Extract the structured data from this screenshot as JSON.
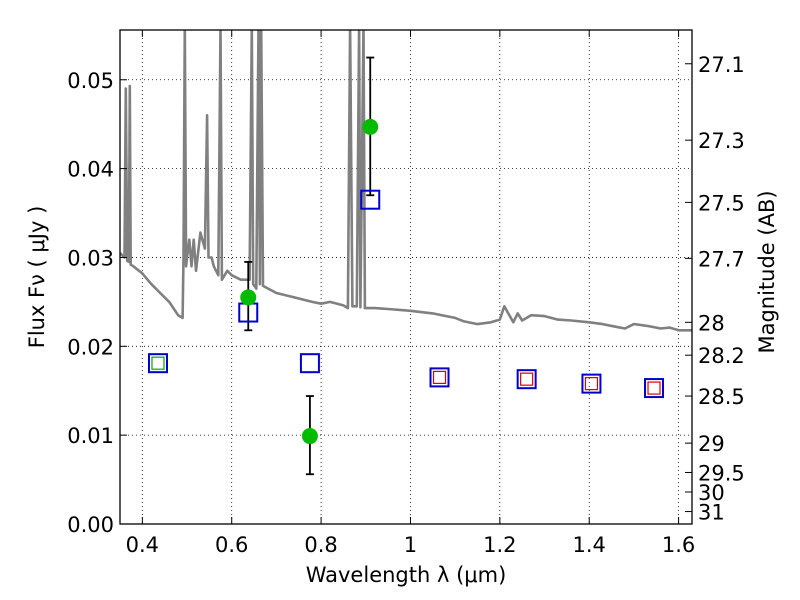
{
  "chart_data": {
    "type": "scatter",
    "xlabel": "Wavelength  λ (μm)",
    "ylabel": "Flux  Fν  ( μJy )",
    "y2label": "Magnitude (AB)",
    "xlim": [
      0.35,
      1.63
    ],
    "ylim": [
      0.0,
      0.0556
    ],
    "grid": true,
    "x_ticks": [
      0.4,
      0.6,
      0.8,
      1.0,
      1.2,
      1.4,
      1.6
    ],
    "x_tick_labels": [
      "0.4",
      "0.6",
      "0.8",
      "1",
      "1.2",
      "1.4",
      "1.6"
    ],
    "y_ticks": [
      0.0,
      0.01,
      0.02,
      0.03,
      0.04,
      0.05
    ],
    "y_tick_labels": [
      "0.00",
      "0.01",
      "0.02",
      "0.03",
      "0.04",
      "0.05"
    ],
    "mag_ticks": [
      {
        "label": "27.1",
        "flux": 0.0518
      },
      {
        "label": "27.3",
        "flux": 0.0432
      },
      {
        "label": "27.5",
        "flux": 0.0362
      },
      {
        "label": "27.7",
        "flux": 0.0299
      },
      {
        "label": "28",
        "flux": 0.0227
      },
      {
        "label": "28.2",
        "flux": 0.019
      },
      {
        "label": "28.5",
        "flux": 0.0144
      },
      {
        "label": "29",
        "flux": 0.0091
      },
      {
        "label": "29.5",
        "flux": 0.0058
      },
      {
        "label": "30",
        "flux": 0.0036
      },
      {
        "label": "31",
        "flux": 0.0014
      }
    ],
    "series": [
      {
        "kind": "sed_model",
        "color": "#808080",
        "points": [
          [
            0.35,
            0.0305
          ],
          [
            0.36,
            0.03
          ],
          [
            0.363,
            0.049
          ],
          [
            0.366,
            0.0296
          ],
          [
            0.37,
            0.0295
          ],
          [
            0.372,
            0.0493
          ],
          [
            0.374,
            0.0292
          ],
          [
            0.38,
            0.029
          ],
          [
            0.4,
            0.0282
          ],
          [
            0.42,
            0.027
          ],
          [
            0.44,
            0.026
          ],
          [
            0.46,
            0.025
          ],
          [
            0.48,
            0.0235
          ],
          [
            0.49,
            0.0232
          ],
          [
            0.492,
            0.03
          ],
          [
            0.495,
            0.056
          ],
          [
            0.498,
            0.029
          ],
          [
            0.5,
            0.03
          ],
          [
            0.505,
            0.032
          ],
          [
            0.51,
            0.029
          ],
          [
            0.515,
            0.032
          ],
          [
            0.52,
            0.0285
          ],
          [
            0.53,
            0.0328
          ],
          [
            0.54,
            0.031
          ],
          [
            0.545,
            0.046
          ],
          [
            0.548,
            0.03
          ],
          [
            0.555,
            0.03
          ],
          [
            0.56,
            0.029
          ],
          [
            0.57,
            0.028
          ],
          [
            0.575,
            0.056
          ],
          [
            0.578,
            0.0275
          ],
          [
            0.59,
            0.0285
          ],
          [
            0.6,
            0.028
          ],
          [
            0.62,
            0.0275
          ],
          [
            0.64,
            0.0275
          ],
          [
            0.645,
            0.056
          ],
          [
            0.648,
            0.027
          ],
          [
            0.655,
            0.0265
          ],
          [
            0.66,
            0.056
          ],
          [
            0.663,
            0.027
          ],
          [
            0.666,
            0.056
          ],
          [
            0.67,
            0.0268
          ],
          [
            0.7,
            0.026
          ],
          [
            0.74,
            0.0255
          ],
          [
            0.78,
            0.025
          ],
          [
            0.8,
            0.0248
          ],
          [
            0.82,
            0.025
          ],
          [
            0.85,
            0.0246
          ],
          [
            0.86,
            0.0243
          ],
          [
            0.865,
            0.056
          ],
          [
            0.87,
            0.0245
          ],
          [
            0.88,
            0.0245
          ],
          [
            0.885,
            0.056
          ],
          [
            0.888,
            0.0244
          ],
          [
            0.895,
            0.056
          ],
          [
            0.898,
            0.0243
          ],
          [
            0.92,
            0.0243
          ],
          [
            0.95,
            0.0242
          ],
          [
            1.0,
            0.024
          ],
          [
            1.05,
            0.0237
          ],
          [
            1.08,
            0.0234
          ],
          [
            1.1,
            0.0232
          ],
          [
            1.12,
            0.0228
          ],
          [
            1.15,
            0.0225
          ],
          [
            1.18,
            0.0227
          ],
          [
            1.2,
            0.023
          ],
          [
            1.21,
            0.0245
          ],
          [
            1.22,
            0.0236
          ],
          [
            1.23,
            0.0227
          ],
          [
            1.24,
            0.0237
          ],
          [
            1.25,
            0.0229
          ],
          [
            1.27,
            0.0235
          ],
          [
            1.3,
            0.0234
          ],
          [
            1.33,
            0.023
          ],
          [
            1.36,
            0.0229
          ],
          [
            1.4,
            0.0227
          ],
          [
            1.43,
            0.0225
          ],
          [
            1.46,
            0.0222
          ],
          [
            1.48,
            0.022
          ],
          [
            1.5,
            0.0225
          ],
          [
            1.53,
            0.0223
          ],
          [
            1.56,
            0.022
          ],
          [
            1.58,
            0.0221
          ],
          [
            1.6,
            0.0218
          ],
          [
            1.63,
            0.0218
          ]
        ]
      },
      {
        "kind": "observed",
        "color": "#00bb00",
        "points": [
          {
            "x": 0.637,
            "y": 0.0255,
            "yerr_low": 0.0037,
            "yerr_high": 0.004
          },
          {
            "x": 0.775,
            "y": 0.0099,
            "yerr_low": 0.0043,
            "yerr_high": 0.0045
          },
          {
            "x": 0.91,
            "y": 0.0447,
            "yerr_low": 0.0077,
            "yerr_high": 0.0078
          }
        ]
      },
      {
        "kind": "model_synthetic",
        "color": "#0000cc",
        "points": [
          {
            "x": 0.435,
            "y": 0.0181,
            "inner_color": "#00aa00"
          },
          {
            "x": 0.637,
            "y": 0.0238,
            "inner_color": ""
          },
          {
            "x": 0.775,
            "y": 0.0181,
            "inner_color": ""
          },
          {
            "x": 0.91,
            "y": 0.0365,
            "inner_color": ""
          },
          {
            "x": 1.065,
            "y": 0.0165,
            "inner_color": "#dd0000"
          },
          {
            "x": 1.26,
            "y": 0.0163,
            "inner_color": "#dd0000"
          },
          {
            "x": 1.405,
            "y": 0.0158,
            "inner_color": "#dd0000"
          },
          {
            "x": 1.545,
            "y": 0.0153,
            "inner_color": "#dd0000"
          }
        ]
      }
    ]
  }
}
